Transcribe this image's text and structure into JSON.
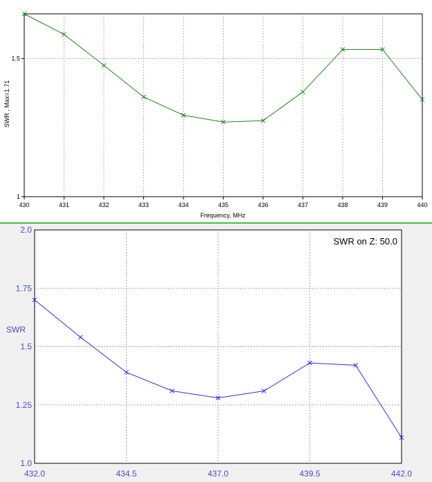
{
  "chart_data": [
    {
      "type": "line",
      "xlabel": "Frequency, MHz",
      "ylabel": "SWR , Max=1.71",
      "xlim": [
        430,
        440
      ],
      "ylim": [
        1.0,
        1.71
      ],
      "y_scale": "log",
      "x_ticks": [
        "430",
        "431",
        "432",
        "433",
        "434",
        "435",
        "436",
        "437",
        "438",
        "439",
        "440"
      ],
      "y_ticks": [
        "1.5",
        "1"
      ],
      "grid": true,
      "series": [
        {
          "color": "#1a8a1a",
          "marker": "x",
          "x": [
            430,
            431,
            432,
            433,
            434,
            435,
            436,
            437,
            438,
            439,
            440
          ],
          "values": [
            1.71,
            1.61,
            1.47,
            1.34,
            1.27,
            1.245,
            1.25,
            1.36,
            1.54,
            1.54,
            1.33
          ]
        }
      ]
    },
    {
      "type": "line",
      "annotation": "SWR on Z: 50.0",
      "ylabel": "SWR",
      "xlim": [
        432.0,
        442.0
      ],
      "ylim": [
        1.0,
        2.0
      ],
      "x_ticks": [
        "432.0",
        "434.5",
        "437.0",
        "439.5",
        "442.0"
      ],
      "y_ticks": [
        "2.0",
        "1.75",
        "1.5",
        "1.25",
        "1.0"
      ],
      "grid": true,
      "series": [
        {
          "color": "#2a2aff",
          "marker": "x",
          "x": [
            432.0,
            433.25,
            434.5,
            435.75,
            437.0,
            438.25,
            439.5,
            440.75,
            442.0
          ],
          "values": [
            1.7,
            1.54,
            1.39,
            1.31,
            1.28,
            1.31,
            1.43,
            1.42,
            1.11
          ]
        }
      ]
    }
  ]
}
